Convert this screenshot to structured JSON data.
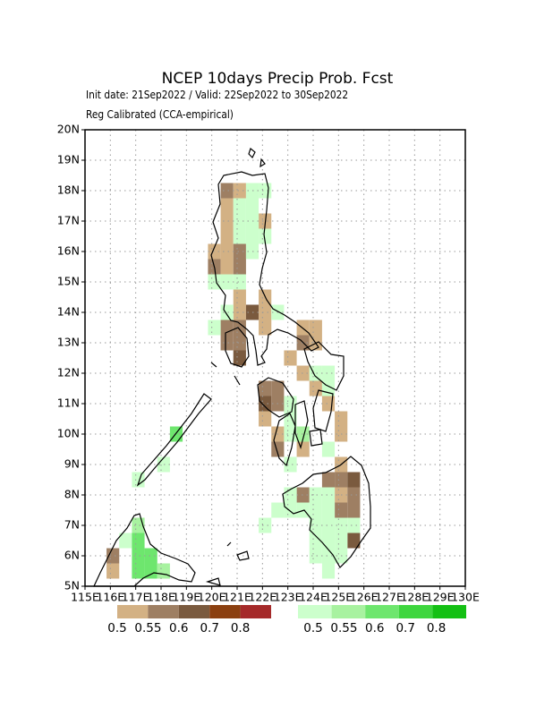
{
  "chart_data": {
    "type": "map",
    "title": "NCEP 10days Precip Prob. Fcst",
    "subtitle": [
      "Init date: 21Sep2022 / Valid: 22Sep2022 to 30Sep2022",
      "Reg Calibrated (CCA-empirical)"
    ],
    "xlim": [
      115,
      130
    ],
    "ylim": [
      5,
      20
    ],
    "xticks": [
      {
        "value": 115,
        "label": "115E"
      },
      {
        "value": 116,
        "label": "116E"
      },
      {
        "value": 117,
        "label": "117E"
      },
      {
        "value": 118,
        "label": "118E"
      },
      {
        "value": 119,
        "label": "119E"
      },
      {
        "value": 120,
        "label": "120E"
      },
      {
        "value": 121,
        "label": "121E"
      },
      {
        "value": 122,
        "label": "122E"
      },
      {
        "value": 123,
        "label": "123E"
      },
      {
        "value": 124,
        "label": "124E"
      },
      {
        "value": 125,
        "label": "125E"
      },
      {
        "value": 126,
        "label": "126E"
      },
      {
        "value": 127,
        "label": "127E"
      },
      {
        "value": 128,
        "label": "128E"
      },
      {
        "value": 129,
        "label": "129E"
      },
      {
        "value": 130,
        "label": "130E"
      }
    ],
    "yticks": [
      {
        "value": 5,
        "label": "5N"
      },
      {
        "value": 6,
        "label": "6N"
      },
      {
        "value": 7,
        "label": "7N"
      },
      {
        "value": 8,
        "label": "8N"
      },
      {
        "value": 9,
        "label": "9N"
      },
      {
        "value": 10,
        "label": "10N"
      },
      {
        "value": 11,
        "label": "11N"
      },
      {
        "value": 12,
        "label": "12N"
      },
      {
        "value": 13,
        "label": "13N"
      },
      {
        "value": 14,
        "label": "14N"
      },
      {
        "value": 15,
        "label": "15N"
      },
      {
        "value": 16,
        "label": "16N"
      },
      {
        "value": 17,
        "label": "17N"
      },
      {
        "value": 18,
        "label": "18N"
      },
      {
        "value": 19,
        "label": "19N"
      },
      {
        "value": 20,
        "label": "20N"
      }
    ],
    "grid": true,
    "dry_scale": {
      "levels": [
        0.5,
        0.55,
        0.6,
        0.7,
        0.8
      ],
      "colors": [
        "#d3b184",
        "#9e7f63",
        "#7a5a3e",
        "#8b4010",
        "#a52a2a"
      ]
    },
    "wet_scale": {
      "levels": [
        0.5,
        0.55,
        0.6,
        0.7,
        0.8
      ],
      "colors": [
        "#ccffcc",
        "#a8f2a0",
        "#6ee66e",
        "#3ed63e",
        "#14c014"
      ]
    },
    "dry_cells": [
      [
        120.6,
        18,
        0.55
      ],
      [
        121.1,
        18,
        0.5
      ],
      [
        120.6,
        17.5,
        0.5
      ],
      [
        120.6,
        17,
        0.5
      ],
      [
        122.1,
        17,
        0.5
      ],
      [
        120.6,
        16.5,
        0.5
      ],
      [
        120.1,
        16,
        0.5
      ],
      [
        120.6,
        16,
        0.5
      ],
      [
        121.1,
        16,
        0.55
      ],
      [
        120.1,
        15.5,
        0.55
      ],
      [
        120.6,
        15.5,
        0.5
      ],
      [
        121.1,
        15.5,
        0.55
      ],
      [
        121.1,
        14.5,
        0.5
      ],
      [
        122.1,
        14.5,
        0.5
      ],
      [
        121.1,
        14,
        0.5
      ],
      [
        121.6,
        14,
        0.6
      ],
      [
        122.1,
        14,
        0.5
      ],
      [
        120.6,
        13.5,
        0.55
      ],
      [
        121.1,
        13.5,
        0.55
      ],
      [
        122.1,
        13.5,
        0.5
      ],
      [
        123.6,
        13.5,
        0.5
      ],
      [
        124.1,
        13.5,
        0.5
      ],
      [
        120.6,
        13,
        0.55
      ],
      [
        121.1,
        13,
        0.55
      ],
      [
        123.6,
        13,
        0.55
      ],
      [
        124.1,
        13,
        0.5
      ],
      [
        121.1,
        12.5,
        0.6
      ],
      [
        123.1,
        12.5,
        0.5
      ],
      [
        123.6,
        12,
        0.5
      ],
      [
        122.1,
        11.5,
        0.55
      ],
      [
        122.6,
        11.5,
        0.55
      ],
      [
        124.1,
        11.5,
        0.5
      ],
      [
        122.1,
        11,
        0.6
      ],
      [
        122.6,
        11,
        0.55
      ],
      [
        124.6,
        11,
        0.5
      ],
      [
        122.1,
        10.5,
        0.5
      ],
      [
        125.1,
        10.5,
        0.5
      ],
      [
        122.6,
        10,
        0.5
      ],
      [
        125.1,
        10,
        0.5
      ],
      [
        122.6,
        9.5,
        0.55
      ],
      [
        123.6,
        9.5,
        0.5
      ],
      [
        125.1,
        9,
        0.5
      ],
      [
        124.6,
        8.5,
        0.55
      ],
      [
        125.1,
        8.5,
        0.55
      ],
      [
        125.6,
        8.5,
        0.6
      ],
      [
        123.6,
        8,
        0.55
      ],
      [
        125.1,
        8,
        0.5
      ],
      [
        125.6,
        8,
        0.55
      ],
      [
        125.1,
        7.5,
        0.55
      ],
      [
        125.6,
        7.5,
        0.55
      ],
      [
        125.6,
        6.5,
        0.6
      ],
      [
        116.1,
        6,
        0.55
      ],
      [
        116.1,
        5.5,
        0.5
      ]
    ],
    "wet_cells": [
      [
        121.6,
        18,
        0.5
      ],
      [
        122.1,
        18,
        0.5
      ],
      [
        121.1,
        17.5,
        0.5
      ],
      [
        121.6,
        17.5,
        0.5
      ],
      [
        121.1,
        17,
        0.5
      ],
      [
        121.6,
        17,
        0.5
      ],
      [
        121.1,
        16.5,
        0.5
      ],
      [
        121.6,
        16.5,
        0.5
      ],
      [
        122.1,
        16.5,
        0.5
      ],
      [
        121.6,
        16,
        0.5
      ],
      [
        120.1,
        15,
        0.5
      ],
      [
        120.6,
        15,
        0.5
      ],
      [
        121.1,
        15,
        0.5
      ],
      [
        120.6,
        14,
        0.5
      ],
      [
        122.6,
        14,
        0.5
      ],
      [
        120.1,
        13.5,
        0.5
      ],
      [
        124.1,
        12,
        0.5
      ],
      [
        124.6,
        12,
        0.5
      ],
      [
        124.6,
        11.5,
        0.5
      ],
      [
        123.1,
        11,
        0.5
      ],
      [
        123.1,
        10.5,
        0.5
      ],
      [
        123.1,
        10,
        0.5
      ],
      [
        123.6,
        10,
        0.55
      ],
      [
        124.6,
        9.5,
        0.5
      ],
      [
        123.1,
        9,
        0.5
      ],
      [
        123.1,
        8,
        0.5
      ],
      [
        124.1,
        8,
        0.5
      ],
      [
        124.6,
        8,
        0.5
      ],
      [
        122.6,
        7.5,
        0.5
      ],
      [
        123.1,
        7.5,
        0.5
      ],
      [
        123.6,
        7.5,
        0.5
      ],
      [
        124.1,
        7.5,
        0.5
      ],
      [
        124.6,
        7.5,
        0.5
      ],
      [
        122.1,
        7,
        0.5
      ],
      [
        124.1,
        7,
        0.5
      ],
      [
        124.6,
        7,
        0.5
      ],
      [
        125.1,
        7,
        0.5
      ],
      [
        125.6,
        7,
        0.5
      ],
      [
        124.1,
        6.5,
        0.5
      ],
      [
        124.6,
        6.5,
        0.5
      ],
      [
        125.1,
        6.5,
        0.5
      ],
      [
        124.1,
        6,
        0.5
      ],
      [
        124.6,
        6,
        0.5
      ],
      [
        125.1,
        6,
        0.5
      ],
      [
        124.6,
        5.5,
        0.5
      ],
      [
        118.6,
        10,
        0.6
      ],
      [
        118.1,
        9,
        0.5
      ],
      [
        117.1,
        8.5,
        0.5
      ],
      [
        117.1,
        7,
        0.55
      ],
      [
        116.6,
        6.5,
        0.5
      ],
      [
        117.1,
        6.5,
        0.6
      ],
      [
        117.1,
        6,
        0.6
      ],
      [
        117.6,
        6,
        0.6
      ],
      [
        117.1,
        5.5,
        0.6
      ],
      [
        117.6,
        5.5,
        0.6
      ],
      [
        118.1,
        5.5,
        0.55
      ]
    ]
  }
}
